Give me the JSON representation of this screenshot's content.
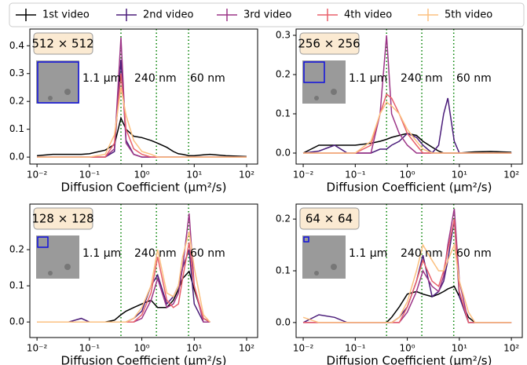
{
  "chart_data": [
    {
      "type": "line",
      "title": "512 × 512",
      "xlabel": "Diffusion Coefficient (μm²/s)",
      "annotations": [
        "1.1 μm",
        "240 nm",
        "60 nm"
      ],
      "vlines": [
        0.4,
        1.9,
        7.8
      ],
      "xscale": "log",
      "legend": "top",
      "xlim": [
        0.0073,
        162
      ],
      "xticks": [
        {
          "value": 0.01,
          "label": "10⁻²"
        },
        {
          "value": 0.1,
          "label": "10⁻¹"
        },
        {
          "value": 1,
          "label": "10⁰"
        },
        {
          "value": 10,
          "label": "10¹"
        },
        {
          "value": 100,
          "label": "10²"
        }
      ],
      "ylim": [
        -0.025,
        0.46
      ],
      "yticks": [
        {
          "value": 0,
          "label": "0.0"
        },
        0.1,
        0.2,
        0.3,
        0.4
      ],
      "x": [
        0.01,
        0.02,
        0.04,
        0.07,
        0.1,
        0.2,
        0.3,
        0.4,
        0.5,
        0.7,
        1,
        1.5,
        2,
        3,
        4,
        5,
        6,
        8,
        10,
        15,
        20,
        40,
        100
      ],
      "series": [
        {
          "name": "1st video",
          "color": "#000000",
          "values": [
            0.005,
            0.01,
            0.01,
            0.01,
            0.012,
            0.025,
            0.045,
            0.14,
            0.1,
            0.075,
            0.07,
            0.06,
            0.05,
            0.035,
            0.02,
            0.012,
            0.01,
            0.005,
            0.005,
            0.008,
            0.01,
            0.005,
            0.002
          ]
        },
        {
          "name": "2nd video",
          "color": "#4b1d7a",
          "values": [
            0,
            0,
            0,
            0,
            0,
            0,
            0.02,
            0.35,
            0.06,
            0.01,
            0,
            0,
            0,
            0,
            0,
            0,
            0,
            0,
            0,
            0,
            0,
            0,
            0
          ]
        },
        {
          "name": "3rd video",
          "color": "#9c3587",
          "values": [
            0,
            0,
            0,
            0,
            0,
            0,
            0.03,
            0.43,
            0.05,
            0.01,
            0,
            0,
            0,
            0,
            0,
            0,
            0,
            0,
            0,
            0,
            0,
            0,
            0
          ]
        },
        {
          "name": "4th video",
          "color": "#e8606b",
          "values": [
            0,
            0,
            0,
            0,
            0,
            0,
            0.05,
            0.3,
            0.1,
            0.03,
            0.01,
            0,
            0,
            0,
            0,
            0,
            0,
            0,
            0,
            0,
            0,
            0,
            0
          ]
        },
        {
          "name": "5th video",
          "color": "#fbc080",
          "values": [
            0,
            0,
            0,
            0,
            0,
            0.01,
            0.08,
            0.25,
            0.15,
            0.06,
            0.02,
            0.01,
            0,
            0,
            0,
            0,
            0,
            0,
            0,
            0,
            0,
            0,
            0
          ]
        }
      ]
    },
    {
      "type": "line",
      "title": "256 × 256",
      "xlabel": "Diffusion Coefficient (μm²/s)",
      "annotations": [
        "1.1 μm",
        "240 nm",
        "60 nm"
      ],
      "vlines": [
        0.4,
        1.9,
        7.8
      ],
      "xscale": "log",
      "xlim": [
        0.0073,
        162
      ],
      "xticks": [
        {
          "value": 0.01,
          "label": "10⁻²"
        },
        {
          "value": 0.1,
          "label": "10⁻¹"
        },
        {
          "value": 1,
          "label": "10⁰"
        },
        {
          "value": 10,
          "label": "10¹"
        },
        {
          "value": 100,
          "label": "10²"
        }
      ],
      "ylim": [
        -0.028,
        0.316
      ],
      "yticks": [
        {
          "value": 0,
          "label": "0.0"
        },
        0.1,
        0.2,
        0.3
      ],
      "x": [
        0.01,
        0.02,
        0.04,
        0.07,
        0.1,
        0.2,
        0.3,
        0.4,
        0.5,
        0.7,
        1,
        1.5,
        2,
        3,
        4,
        5,
        6,
        8,
        10,
        15,
        20,
        40,
        100
      ],
      "series": [
        {
          "name": "1st video",
          "color": "#000000",
          "values": [
            0,
            0.02,
            0.02,
            0.02,
            0.02,
            0.025,
            0.03,
            0.035,
            0.04,
            0.045,
            0.05,
            0.045,
            0.03,
            0.015,
            0.005,
            0,
            0,
            0,
            0,
            0.002,
            0.003,
            0.004,
            0.002
          ]
        },
        {
          "name": "2nd video",
          "color": "#4b1d7a",
          "values": [
            0,
            0.005,
            0.02,
            0,
            0,
            0,
            0.01,
            0.01,
            0.02,
            0.03,
            0.05,
            0.04,
            0.02,
            0,
            0.02,
            0.1,
            0.14,
            0.03,
            0,
            0,
            0,
            0,
            0
          ]
        },
        {
          "name": "3rd video",
          "color": "#9c3587",
          "values": [
            0,
            0,
            0,
            0,
            0,
            0,
            0.1,
            0.3,
            0.1,
            0.05,
            0.02,
            0,
            0,
            0,
            0,
            0,
            0,
            0,
            0,
            0,
            0,
            0,
            0
          ]
        },
        {
          "name": "4th video",
          "color": "#e8606b",
          "values": [
            0,
            0,
            0,
            0,
            0,
            0.02,
            0.1,
            0.15,
            0.14,
            0.1,
            0.05,
            0.02,
            0,
            0,
            0,
            0,
            0,
            0,
            0,
            0,
            0,
            0,
            0
          ]
        },
        {
          "name": "5th video",
          "color": "#fbc080",
          "values": [
            0,
            0,
            0,
            0,
            0,
            0.03,
            0.1,
            0.13,
            0.12,
            0.1,
            0.06,
            0.03,
            0.01,
            0,
            0,
            0,
            0,
            0,
            0,
            0,
            0,
            0,
            0
          ]
        }
      ]
    },
    {
      "type": "line",
      "title": "128 × 128",
      "xlabel": "Diffusion Coefficient (μm²/s)",
      "annotations": [
        "1.1 μm",
        "240 nm",
        "60 nm"
      ],
      "vlines": [
        0.4,
        1.9,
        7.8
      ],
      "xscale": "log",
      "xlim": [
        0.0073,
        162
      ],
      "xticks": [
        {
          "value": 0.01,
          "label": "10⁻²"
        },
        {
          "value": 0.1,
          "label": "10⁻¹"
        },
        {
          "value": 1,
          "label": "10⁰"
        },
        {
          "value": 10,
          "label": "10¹"
        },
        {
          "value": 100,
          "label": "10²"
        }
      ],
      "ylim": [
        -0.043,
        0.326
      ],
      "yticks": [
        {
          "value": 0,
          "label": "0.0"
        },
        0.1,
        0.2
      ],
      "x": [
        0.01,
        0.02,
        0.04,
        0.07,
        0.1,
        0.2,
        0.3,
        0.4,
        0.5,
        0.7,
        1,
        1.5,
        2,
        3,
        4,
        5,
        6,
        8,
        10,
        15,
        20,
        40,
        100
      ],
      "series": [
        {
          "name": "1st video",
          "color": "#000000",
          "values": [
            0,
            0,
            0,
            0,
            0,
            0,
            0.005,
            0.02,
            0.03,
            0.04,
            0.05,
            0.06,
            0.04,
            0.04,
            0.06,
            0.09,
            0.12,
            0.14,
            0.09,
            0.01,
            0,
            null,
            null
          ]
        },
        {
          "name": "2nd video",
          "color": "#4b1d7a",
          "values": [
            0,
            0,
            0,
            0.01,
            0,
            0,
            0,
            0,
            0,
            0.01,
            0.03,
            0.1,
            0.13,
            0.05,
            0.07,
            0.1,
            0.15,
            0.2,
            0.05,
            0,
            0,
            null,
            null
          ]
        },
        {
          "name": "3rd video",
          "color": "#9c3587",
          "values": [
            0,
            0,
            0,
            0,
            0,
            0,
            0,
            0,
            0,
            0,
            0.01,
            0.06,
            0.12,
            0.04,
            0.05,
            0.08,
            0.15,
            0.3,
            0.1,
            0,
            0,
            null,
            null
          ]
        },
        {
          "name": "4th video",
          "color": "#e8606b",
          "values": [
            0,
            0,
            0,
            0,
            0,
            0,
            0,
            0,
            0,
            0,
            0.02,
            0.08,
            0.18,
            0.06,
            0.04,
            0.05,
            0.12,
            0.22,
            0.1,
            0.01,
            0,
            null,
            null
          ]
        },
        {
          "name": "5th video",
          "color": "#fbc080",
          "values": [
            0,
            0,
            0,
            0,
            0,
            0,
            0,
            0,
            0,
            0.01,
            0.04,
            0.1,
            0.2,
            0.08,
            0.07,
            0.1,
            0.18,
            0.25,
            0.15,
            0.02,
            0,
            null,
            null
          ]
        }
      ]
    },
    {
      "type": "line",
      "title": "64 × 64",
      "xlabel": "Diffusion Coefficient (μm²/s)",
      "annotations": [
        "1.1 μm",
        "240 nm",
        "60 nm"
      ],
      "vlines": [
        0.4,
        1.9,
        7.8
      ],
      "xscale": "log",
      "xlim": [
        0.0073,
        162
      ],
      "xticks": [
        {
          "value": 0.01,
          "label": "10⁻²"
        },
        {
          "value": 0.1,
          "label": "10⁻¹"
        },
        {
          "value": 1,
          "label": "10⁰"
        },
        {
          "value": 10,
          "label": "10¹"
        },
        {
          "value": 100,
          "label": "10²"
        }
      ],
      "ylim": [
        -0.029,
        0.229
      ],
      "yticks": [
        {
          "value": 0,
          "label": "0.0"
        },
        0.1,
        0.2
      ],
      "x": [
        0.01,
        0.02,
        0.04,
        0.07,
        0.1,
        0.2,
        0.3,
        0.4,
        0.5,
        0.7,
        1,
        1.5,
        2,
        3,
        4,
        5,
        6,
        8,
        10,
        15,
        20,
        40,
        100
      ],
      "series": [
        {
          "name": "1st video",
          "color": "#000000",
          "values": [
            null,
            null,
            null,
            null,
            null,
            null,
            null,
            0,
            0.01,
            0.03,
            0.055,
            0.06,
            0.055,
            0.05,
            0.055,
            0.06,
            0.065,
            0.07,
            0.05,
            0.01,
            0,
            null,
            null
          ]
        },
        {
          "name": "2nd video",
          "color": "#4b1d7a",
          "values": [
            0,
            0.015,
            0.01,
            0,
            0,
            0,
            0,
            0,
            0,
            0.01,
            0.03,
            0.08,
            0.13,
            0.05,
            0.06,
            0.08,
            0.12,
            0.2,
            0.05,
            0,
            0,
            0,
            0
          ]
        },
        {
          "name": "3rd video",
          "color": "#9c3587",
          "values": [
            0,
            0,
            0,
            0,
            0,
            0,
            0,
            0,
            0,
            0,
            0.02,
            0.06,
            0.1,
            0.07,
            0.06,
            0.09,
            0.15,
            0.22,
            0.08,
            0,
            0,
            0,
            0
          ]
        },
        {
          "name": "4th video",
          "color": "#e8606b",
          "values": [
            0,
            0,
            0,
            0,
            0,
            0,
            0,
            0,
            0,
            0,
            0.03,
            0.08,
            0.12,
            0.08,
            0.07,
            0.1,
            0.14,
            0.2,
            0.06,
            0,
            0,
            0,
            0
          ]
        },
        {
          "name": "5th video",
          "color": "#fbc080",
          "values": [
            0.01,
            0,
            0,
            0,
            0,
            0,
            0,
            0,
            0,
            0.01,
            0.04,
            0.1,
            0.15,
            0.12,
            0.1,
            0.1,
            0.12,
            0.15,
            0.08,
            0.02,
            0,
            0,
            0
          ]
        }
      ]
    }
  ]
}
